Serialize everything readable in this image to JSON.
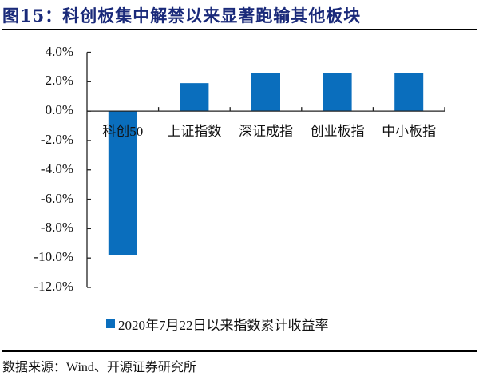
{
  "figure": {
    "title": "图15：科创板集中解禁以来显著跑输其他板块",
    "source": "数据来源：Wind、开源证券研究所"
  },
  "chart_data": {
    "type": "bar",
    "title": "科创板集中解禁以来显著跑输其他板块",
    "categories": [
      "科创50",
      "上证指数",
      "深证成指",
      "创业板指",
      "中小板指"
    ],
    "series": [
      {
        "name": "2020年7月22日以来指数累计收益率",
        "values": [
          -9.8,
          1.9,
          2.6,
          2.6,
          2.6
        ],
        "color": "#0a6ebd"
      }
    ],
    "xlabel": "",
    "ylabel": "",
    "ylim": [
      -12.0,
      4.0
    ],
    "yticks": [
      "4.0%",
      "2.0%",
      "0.0%",
      "-2.0%",
      "-4.0%",
      "-6.0%",
      "-8.0%",
      "-10.0%",
      "-12.0%"
    ],
    "ytick_values": [
      4,
      2,
      0,
      -2,
      -4,
      -6,
      -8,
      -10,
      -12
    ],
    "grid": false,
    "legend_position": "bottom"
  }
}
